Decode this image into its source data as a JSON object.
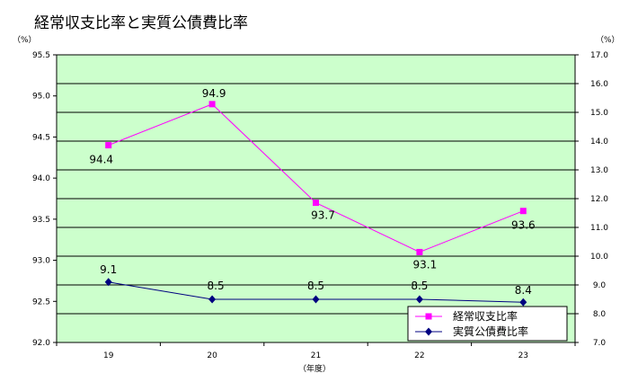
{
  "chart_data": {
    "type": "line",
    "title": "経常収支比率と実質公債費比率",
    "categories": [
      "19",
      "20",
      "21",
      "22",
      "23"
    ],
    "xlabel": "（年度）",
    "ylabel_left": "（%）",
    "ylabel_right": "（%）",
    "ylim_left": [
      92.0,
      95.5
    ],
    "ylim_right": [
      7.0,
      17.0
    ],
    "yticks_left": [
      "92.0",
      "92.5",
      "93.0",
      "93.5",
      "94.0",
      "94.5",
      "95.0",
      "95.5"
    ],
    "yticks_right": [
      "7.0",
      "8.0",
      "9.0",
      "10.0",
      "11.0",
      "12.0",
      "13.0",
      "14.0",
      "15.0",
      "16.0",
      "17.0"
    ],
    "grid": true,
    "legend_position": "bottom-right",
    "series": [
      {
        "name": "経常収支比率",
        "axis": "left",
        "values": [
          94.4,
          94.9,
          93.7,
          93.1,
          93.6
        ],
        "labels": [
          "94.4",
          "94.9",
          "93.7",
          "93.1",
          "93.6"
        ],
        "color": "#ff00ff",
        "marker": "square"
      },
      {
        "name": "実質公債費比率",
        "axis": "right",
        "values": [
          9.1,
          8.5,
          8.5,
          8.5,
          8.4
        ],
        "labels": [
          "9.1",
          "8.5",
          "8.5",
          "8.5",
          "8.4"
        ],
        "color": "#000080",
        "marker": "diamond"
      }
    ],
    "plot_bg": "#ccffcc"
  }
}
